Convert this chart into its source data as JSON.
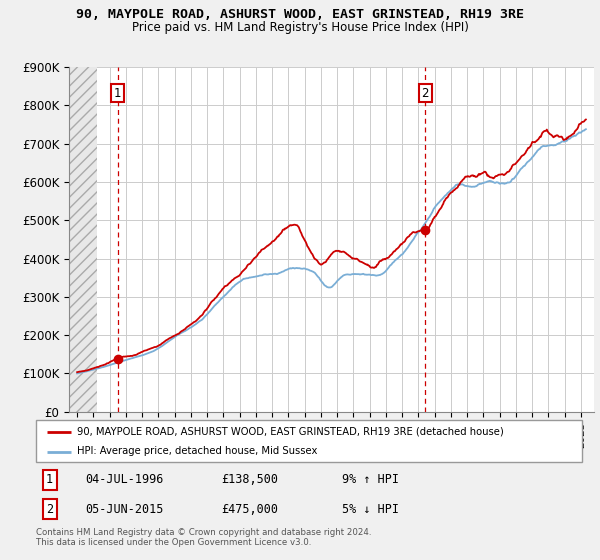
{
  "title": "90, MAYPOLE ROAD, ASHURST WOOD, EAST GRINSTEAD, RH19 3RE",
  "subtitle": "Price paid vs. HM Land Registry's House Price Index (HPI)",
  "ylim": [
    0,
    900000
  ],
  "yticks": [
    0,
    100000,
    200000,
    300000,
    400000,
    500000,
    600000,
    700000,
    800000,
    900000
  ],
  "ytick_labels": [
    "£0",
    "£100K",
    "£200K",
    "£300K",
    "£400K",
    "£500K",
    "£600K",
    "£700K",
    "£800K",
    "£900K"
  ],
  "xlim_start": 1993.5,
  "xlim_end": 2025.8,
  "sale1_x": 1996.5,
  "sale1_y": 138500,
  "sale2_x": 2015.42,
  "sale2_y": 475000,
  "legend_line1": "90, MAYPOLE ROAD, ASHURST WOOD, EAST GRINSTEAD, RH19 3RE (detached house)",
  "legend_line2": "HPI: Average price, detached house, Mid Sussex",
  "note1_label": "1",
  "note1_date": "04-JUL-1996",
  "note1_price": "£138,500",
  "note1_hpi": "9% ↑ HPI",
  "note2_label": "2",
  "note2_date": "05-JUN-2015",
  "note2_price": "£475,000",
  "note2_hpi": "5% ↓ HPI",
  "copyright": "Contains HM Land Registry data © Crown copyright and database right 2024.\nThis data is licensed under the Open Government Licence v3.0.",
  "red_color": "#cc0000",
  "blue_color": "#7aaed6",
  "fig_bg": "#f0f0f0",
  "plot_bg": "#ffffff",
  "grid_color": "#cccccc"
}
